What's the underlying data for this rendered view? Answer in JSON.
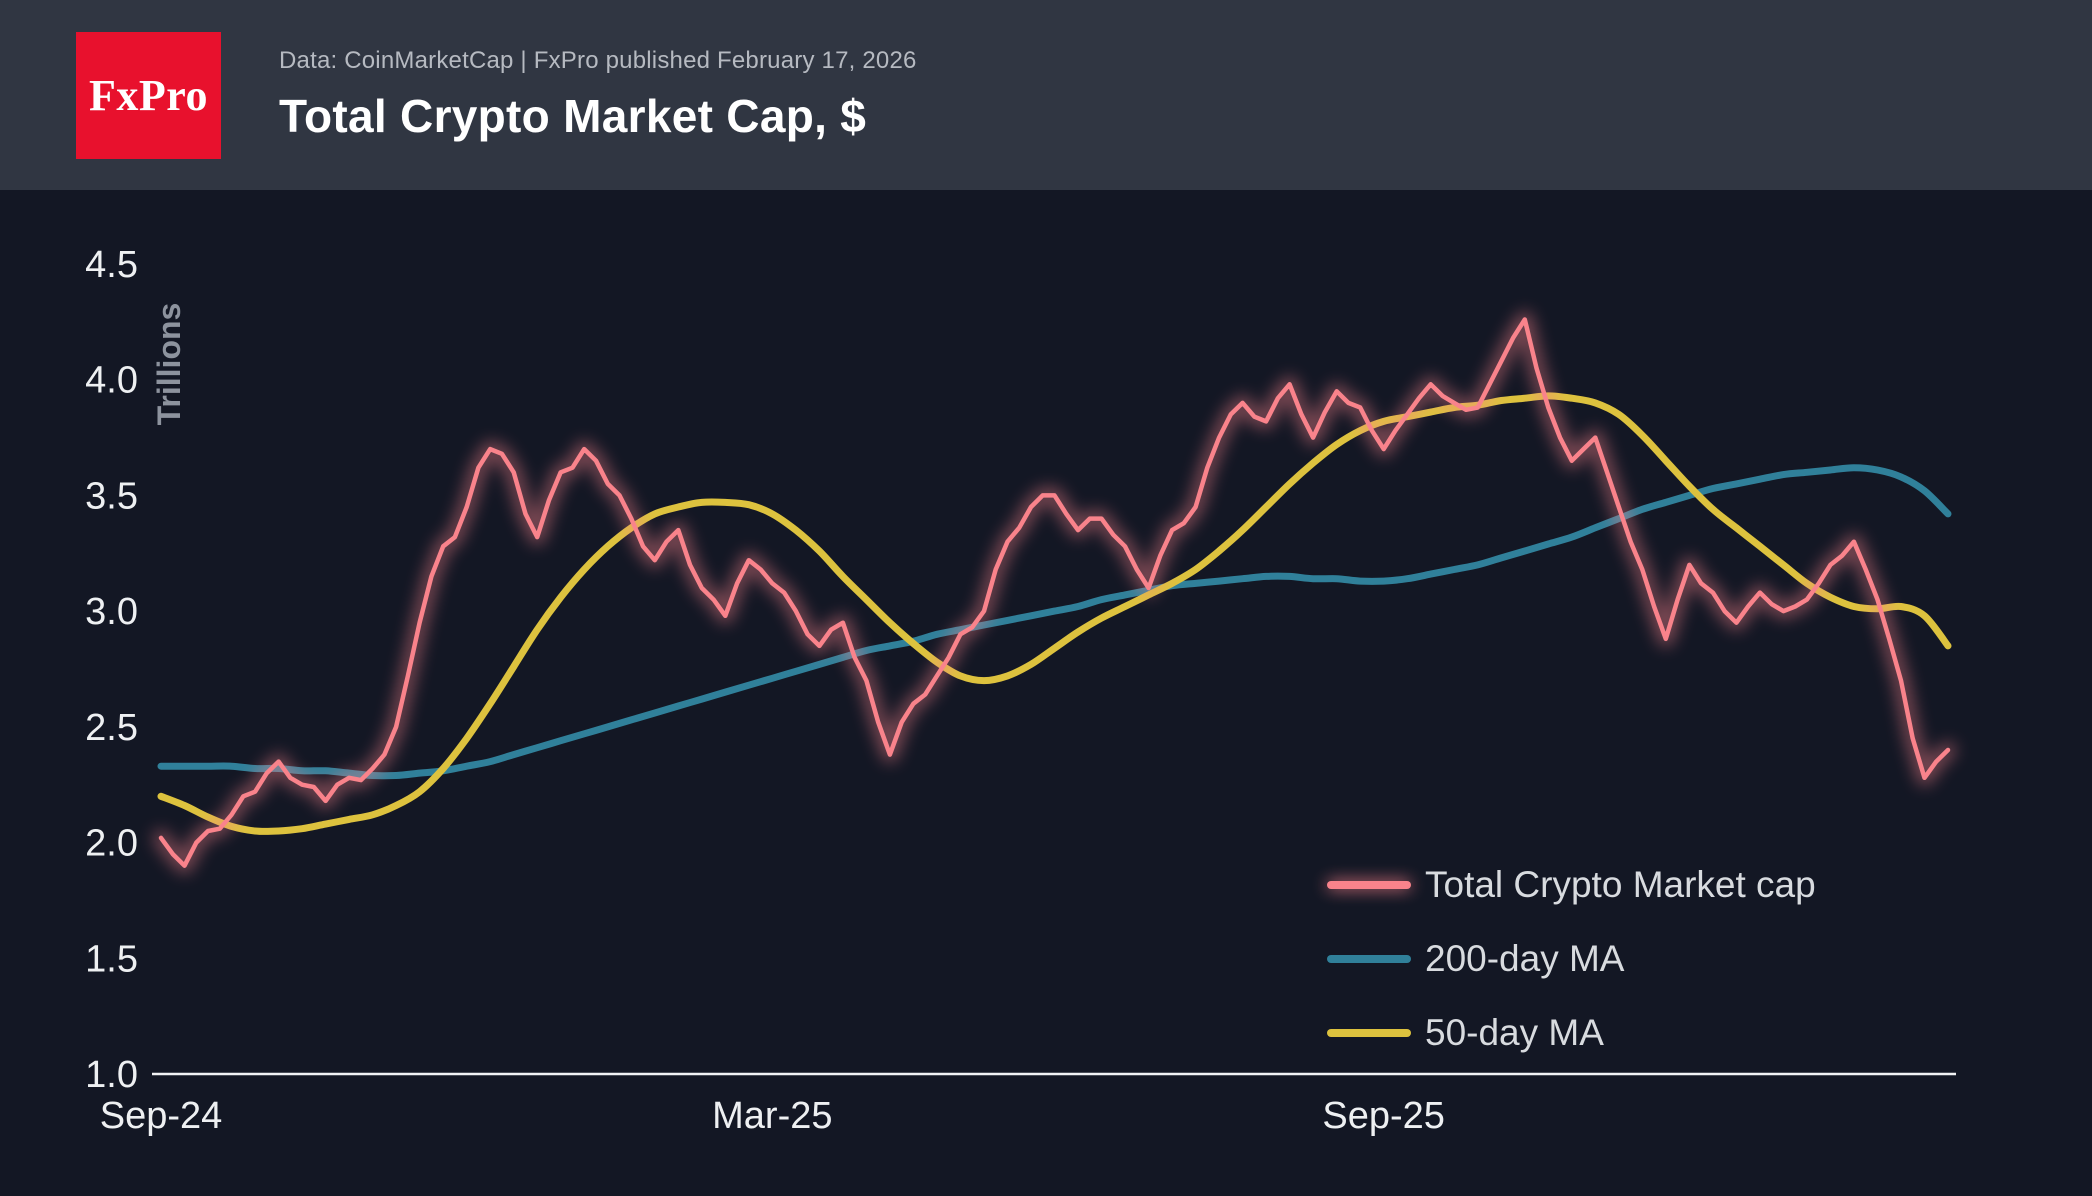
{
  "header": {
    "logo_text": "FxPro",
    "source_line": "Data: CoinMarketCap | FxPro published February 17, 2026",
    "title": "Total Crypto Market Cap, $"
  },
  "chart_data": {
    "type": "line",
    "title": "Total Crypto Market Cap, $",
    "ylabel": "Trillions",
    "x_unit": "weeks since Sep-2024",
    "x_range": [
      0,
      76
    ],
    "ylim": [
      1.0,
      4.5
    ],
    "grid": false,
    "legend_position": "bottom-right",
    "y_ticks": [
      1.0,
      1.5,
      2.0,
      2.5,
      3.0,
      3.5,
      4.0,
      4.5
    ],
    "x_ticks": [
      {
        "label": "Sep-24",
        "week": 0
      },
      {
        "label": "Mar-25",
        "week": 26
      },
      {
        "label": "Sep-25",
        "week": 52
      }
    ],
    "series": [
      {
        "name": "Total Crypto Market cap",
        "color": "#f9838b",
        "glow": true,
        "smooth": false,
        "width": 4.5,
        "values": [
          2.02,
          1.95,
          1.9,
          2.0,
          2.05,
          2.06,
          2.12,
          2.2,
          2.22,
          2.3,
          2.35,
          2.28,
          2.25,
          2.24,
          2.18,
          2.25,
          2.28,
          2.27,
          2.32,
          2.38,
          2.5,
          2.72,
          2.95,
          3.15,
          3.28,
          3.32,
          3.45,
          3.62,
          3.7,
          3.68,
          3.6,
          3.42,
          3.32,
          3.48,
          3.6,
          3.62,
          3.7,
          3.65,
          3.55,
          3.5,
          3.4,
          3.28,
          3.22,
          3.3,
          3.35,
          3.2,
          3.1,
          3.05,
          2.98,
          3.12,
          3.22,
          3.18,
          3.12,
          3.08,
          3.0,
          2.9,
          2.85,
          2.92,
          2.95,
          2.8,
          2.7,
          2.52,
          2.38,
          2.52,
          2.6,
          2.64,
          2.72,
          2.8,
          2.9,
          2.93,
          3.0,
          3.18,
          3.3,
          3.36,
          3.45,
          3.5,
          3.5,
          3.42,
          3.35,
          3.4,
          3.4,
          3.33,
          3.28,
          3.18,
          3.1,
          3.24,
          3.35,
          3.38,
          3.45,
          3.62,
          3.75,
          3.85,
          3.9,
          3.84,
          3.82,
          3.92,
          3.98,
          3.85,
          3.75,
          3.86,
          3.95,
          3.9,
          3.88,
          3.78,
          3.7,
          3.78,
          3.85,
          3.92,
          3.98,
          3.93,
          3.9,
          3.87,
          3.88,
          3.98,
          4.08,
          4.18,
          4.26,
          4.05,
          3.88,
          3.75,
          3.65,
          3.7,
          3.75,
          3.6,
          3.45,
          3.3,
          3.18,
          3.02,
          2.88,
          3.05,
          3.2,
          3.12,
          3.08,
          3.0,
          2.95,
          3.02,
          3.08,
          3.03,
          3.0,
          3.02,
          3.05,
          3.12,
          3.2,
          3.24,
          3.3,
          3.18,
          3.05,
          2.88,
          2.7,
          2.45,
          2.28,
          2.35,
          2.4
        ]
      },
      {
        "name": "200-day MA",
        "color": "#30809a",
        "glow": false,
        "smooth": true,
        "width": 7,
        "values": [
          2.33,
          2.33,
          2.33,
          2.33,
          2.32,
          2.32,
          2.31,
          2.31,
          2.3,
          2.29,
          2.29,
          2.3,
          2.31,
          2.33,
          2.35,
          2.38,
          2.41,
          2.44,
          2.47,
          2.5,
          2.53,
          2.56,
          2.59,
          2.62,
          2.65,
          2.68,
          2.71,
          2.74,
          2.77,
          2.8,
          2.83,
          2.85,
          2.87,
          2.9,
          2.92,
          2.94,
          2.96,
          2.98,
          3.0,
          3.02,
          3.05,
          3.07,
          3.09,
          3.11,
          3.12,
          3.13,
          3.14,
          3.15,
          3.15,
          3.14,
          3.14,
          3.13,
          3.13,
          3.14,
          3.16,
          3.18,
          3.2,
          3.23,
          3.26,
          3.29,
          3.32,
          3.36,
          3.4,
          3.44,
          3.47,
          3.5,
          3.53,
          3.55,
          3.57,
          3.59,
          3.6,
          3.61,
          3.62,
          3.61,
          3.58,
          3.52,
          3.42
        ]
      },
      {
        "name": "50-day MA",
        "color": "#ddc23e",
        "glow": false,
        "smooth": true,
        "width": 7,
        "values": [
          2.2,
          2.16,
          2.11,
          2.07,
          2.05,
          2.05,
          2.06,
          2.08,
          2.1,
          2.12,
          2.16,
          2.22,
          2.32,
          2.45,
          2.6,
          2.76,
          2.92,
          3.06,
          3.18,
          3.28,
          3.36,
          3.42,
          3.45,
          3.47,
          3.47,
          3.46,
          3.42,
          3.35,
          3.26,
          3.15,
          3.05,
          2.95,
          2.86,
          2.78,
          2.72,
          2.7,
          2.72,
          2.77,
          2.84,
          2.91,
          2.97,
          3.02,
          3.07,
          3.12,
          3.18,
          3.26,
          3.35,
          3.45,
          3.55,
          3.64,
          3.72,
          3.78,
          3.82,
          3.84,
          3.86,
          3.88,
          3.89,
          3.91,
          3.92,
          3.93,
          3.92,
          3.9,
          3.85,
          3.76,
          3.65,
          3.54,
          3.44,
          3.36,
          3.28,
          3.2,
          3.12,
          3.06,
          3.02,
          3.01,
          3.02,
          2.98,
          2.85
        ]
      }
    ]
  },
  "colors": {
    "background": "#131724",
    "header_background": "#303642",
    "logo_background": "#e8112d",
    "axis_text": "#eef0f2",
    "muted_text": "#8d939e",
    "legend_text": "#d8dbdf",
    "axis_line": "#f2f3f5"
  }
}
